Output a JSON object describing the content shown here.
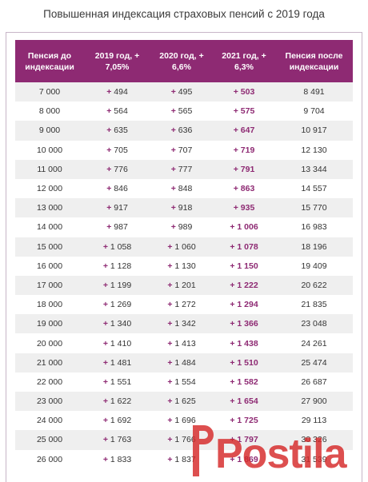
{
  "page": {
    "title": "Повышенная индексация страховых пенсий с 2019 года"
  },
  "table": {
    "headers": [
      "Пенсия до индексации",
      "2019 год, + 7,05%",
      "2020 год, + 6,6%",
      "2021 год, + 6,3%",
      "Пенсия после индексации"
    ],
    "rows": [
      [
        "7 000",
        "494",
        "495",
        "503",
        "8 491"
      ],
      [
        "8 000",
        "564",
        "565",
        "575",
        "9 704"
      ],
      [
        "9 000",
        "635",
        "636",
        "647",
        "10 917"
      ],
      [
        "10 000",
        "705",
        "707",
        "719",
        "12 130"
      ],
      [
        "11 000",
        "776",
        "777",
        "791",
        "13 344"
      ],
      [
        "12 000",
        "846",
        "848",
        "863",
        "14 557"
      ],
      [
        "13 000",
        "917",
        "918",
        "935",
        "15 770"
      ],
      [
        "14 000",
        "987",
        "989",
        "1 006",
        "16 983"
      ],
      [
        "15 000",
        "1 058",
        "1 060",
        "1 078",
        "18 196"
      ],
      [
        "16 000",
        "1 128",
        "1 130",
        "1 150",
        "19 409"
      ],
      [
        "17 000",
        "1 199",
        "1 201",
        "1 222",
        "20 622"
      ],
      [
        "18 000",
        "1 269",
        "1 272",
        "1 294",
        "21 835"
      ],
      [
        "19 000",
        "1 340",
        "1 342",
        "1 366",
        "23 048"
      ],
      [
        "20 000",
        "1 410",
        "1 413",
        "1 438",
        "24 261"
      ],
      [
        "21 000",
        "1 481",
        "1 484",
        "1 510",
        "25 474"
      ],
      [
        "22 000",
        "1 551",
        "1 554",
        "1 582",
        "26 687"
      ],
      [
        "23 000",
        "1 622",
        "1 625",
        "1 654",
        "27 900"
      ],
      [
        "24 000",
        "1 692",
        "1 696",
        "1 725",
        "29 113"
      ],
      [
        "25 000",
        "1 763",
        "1 766",
        "1 797",
        "30 326"
      ],
      [
        "26 000",
        "1 833",
        "1 837",
        "1 869",
        "31 539"
      ]
    ]
  },
  "plus_sign": "+",
  "watermark": {
    "text": "Postila",
    "color": "#d62828"
  },
  "colors": {
    "header_bg": "#8e2a73",
    "accent": "#8e2a73",
    "stripe": "#efefef"
  }
}
